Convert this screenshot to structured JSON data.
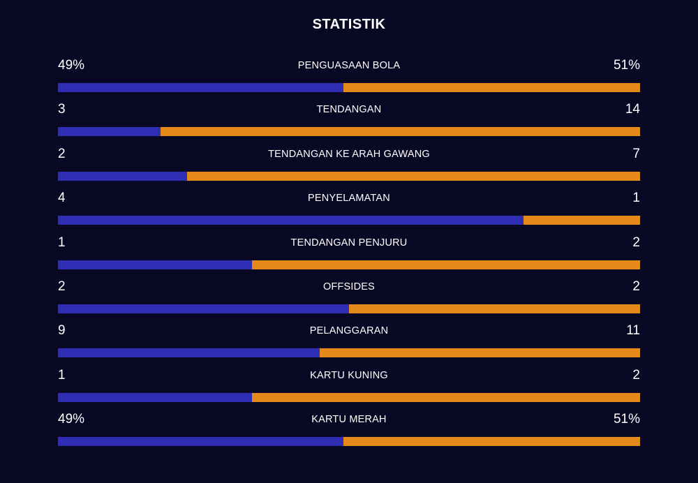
{
  "title": "STATISTIK",
  "colors": {
    "background": "#080824",
    "home_bar": "#2f2db4",
    "away_bar": "#e48a19",
    "text": "#ffffff"
  },
  "stats": [
    {
      "label": "PENGUASAAN BOLA",
      "home": "49%",
      "away": "51%",
      "home_share": 0.49
    },
    {
      "label": "TENDANGAN",
      "home": "3",
      "away": "14",
      "home_share": 0.176
    },
    {
      "label": "TENDANGAN KE ARAH GAWANG",
      "home": "2",
      "away": "7",
      "home_share": 0.222
    },
    {
      "label": "PENYELAMATAN",
      "home": "4",
      "away": "1",
      "home_share": 0.8
    },
    {
      "label": "TENDANGAN PENJURU",
      "home": "1",
      "away": "2",
      "home_share": 0.333
    },
    {
      "label": "OFFSIDES",
      "home": "2",
      "away": "2",
      "home_share": 0.5
    },
    {
      "label": "PELANGGARAN",
      "home": "9",
      "away": "11",
      "home_share": 0.45
    },
    {
      "label": "KARTU KUNING",
      "home": "1",
      "away": "2",
      "home_share": 0.333
    },
    {
      "label": "KARTU MERAH",
      "home": "49%",
      "away": "51%",
      "home_share": 0.49
    }
  ]
}
